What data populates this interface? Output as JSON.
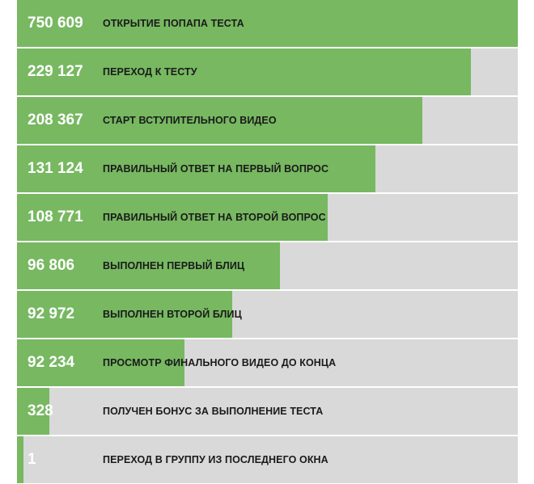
{
  "colors": {
    "bar": "#77b861",
    "track": "#d9d9d9",
    "value_text": "#ffffff",
    "label_text": "#1a1a1a"
  },
  "chart_data": {
    "type": "bar",
    "orientation": "horizontal",
    "categories": [
      "ОТКРЫТИЕ ПОПАПА ТЕСТА",
      "ПЕРЕХОД К ТЕСТУ",
      "СТАРТ ВСТУПИТЕЛЬНОГО ВИДЕО",
      "ПРАВИЛЬНЫЙ ОТВЕТ НА ПЕРВЫЙ ВОПРОС",
      "ПРАВИЛЬНЫЙ ОТВЕТ НА ВТОРОЙ ВОПРОС",
      "ВЫПОЛНЕН ПЕРВЫЙ БЛИЦ",
      "ВЫПОЛНЕН ВТОРОЙ БЛИЦ",
      "ПРОСМОТР ФИНАЛЬНОГО ВИДЕО ДО КОНЦА",
      "ПОЛУЧЕН БОНУС ЗА ВЫПОЛНЕНИЕ ТЕСТА",
      "ПЕРЕХОД В ГРУППУ ИЗ ПОСЛЕДНЕГО ОКНА"
    ],
    "values": [
      750609,
      229127,
      208367,
      131124,
      108771,
      96806,
      92972,
      92234,
      328,
      1
    ],
    "value_labels": [
      "750 609",
      "229 127",
      "208 367",
      "131 124",
      "108 771",
      "96 806",
      "92 972",
      "92 234",
      "328",
      "1"
    ],
    "bar_fill_fraction": [
      1.0,
      0.906,
      0.81,
      0.715,
      0.62,
      0.525,
      0.429,
      0.334,
      0.065,
      0.013
    ]
  }
}
